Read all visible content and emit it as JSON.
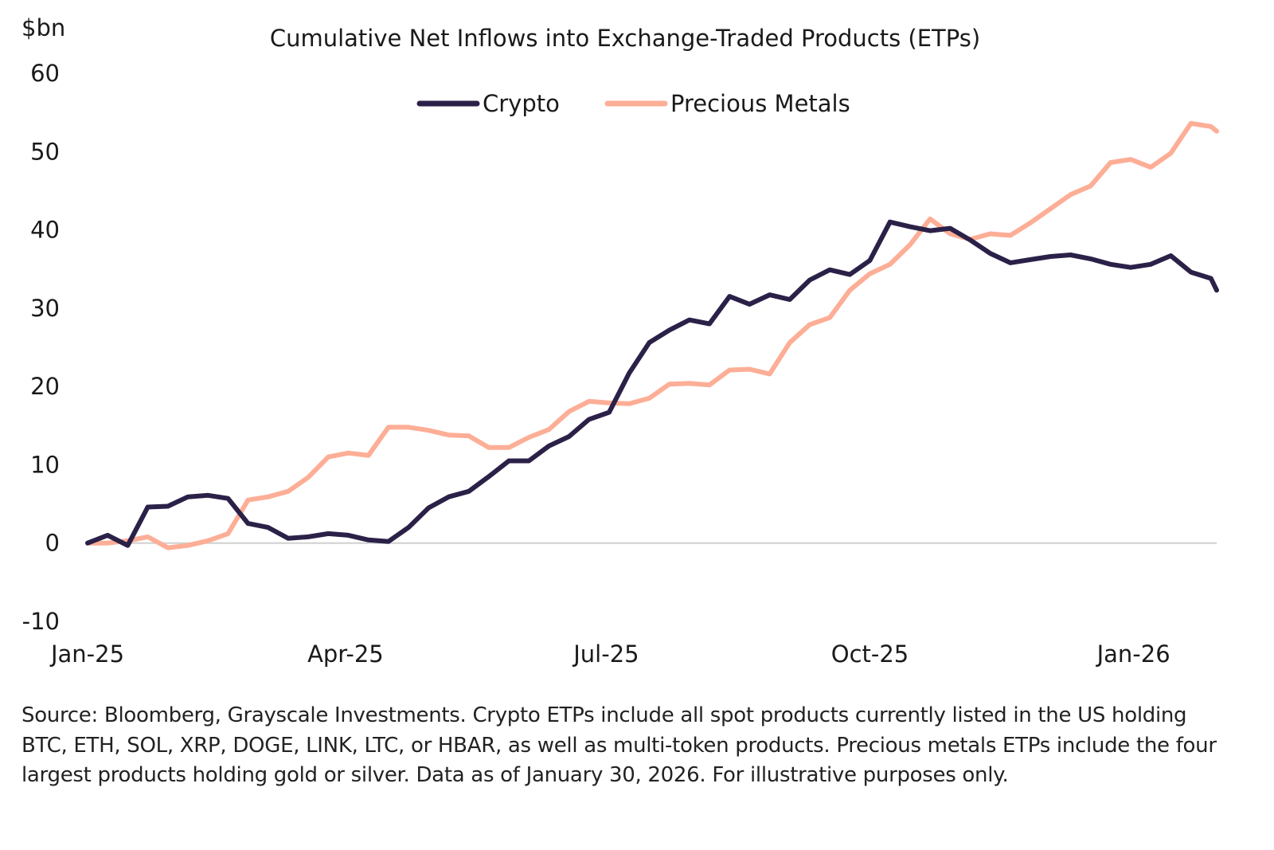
{
  "chart_data": {
    "type": "line",
    "title": "Cumulative Net Inflows into Exchange-Traded Products (ETPs)",
    "ylabel": "$bn",
    "xlabel": "",
    "ylim": [
      -10,
      60
    ],
    "yticks": [
      -10,
      0,
      10,
      20,
      30,
      40,
      50,
      60
    ],
    "ytick_labels": [
      "-10",
      "0",
      "10",
      "20",
      "30",
      "40",
      "50",
      "60"
    ],
    "xlim": [
      "2025-01-01",
      "2026-01-30"
    ],
    "xticks": [
      "2025-01-01",
      "2025-04-01",
      "2025-07-01",
      "2025-10-01",
      "2026-01-01"
    ],
    "xtick_labels": [
      "Jan-25",
      "Apr-25",
      "Jul-25",
      "Oct-25",
      "Jan-26"
    ],
    "grid": false,
    "zero_line": true,
    "legend_position": "top-center",
    "x": [
      "2025-01-01",
      "2025-01-08",
      "2025-01-15",
      "2025-01-22",
      "2025-01-29",
      "2025-02-05",
      "2025-02-12",
      "2025-02-19",
      "2025-02-26",
      "2025-03-05",
      "2025-03-12",
      "2025-03-19",
      "2025-03-26",
      "2025-04-02",
      "2025-04-09",
      "2025-04-16",
      "2025-04-23",
      "2025-04-30",
      "2025-05-07",
      "2025-05-14",
      "2025-05-21",
      "2025-05-28",
      "2025-06-04",
      "2025-06-11",
      "2025-06-18",
      "2025-06-25",
      "2025-07-02",
      "2025-07-09",
      "2025-07-16",
      "2025-07-23",
      "2025-07-30",
      "2025-08-06",
      "2025-08-13",
      "2025-08-20",
      "2025-08-27",
      "2025-09-03",
      "2025-09-10",
      "2025-09-17",
      "2025-09-24",
      "2025-10-01",
      "2025-10-08",
      "2025-10-15",
      "2025-10-22",
      "2025-10-29",
      "2025-11-05",
      "2025-11-12",
      "2025-11-19",
      "2025-11-26",
      "2025-12-03",
      "2025-12-10",
      "2025-12-17",
      "2025-12-24",
      "2025-12-31",
      "2026-01-07",
      "2026-01-14",
      "2026-01-21",
      "2026-01-28",
      "2026-01-30"
    ],
    "series": [
      {
        "name": "Crypto",
        "color": "#2b2148",
        "values": [
          0,
          1.0,
          -0.3,
          4.6,
          4.7,
          5.9,
          6.1,
          5.7,
          2.5,
          2.0,
          0.6,
          0.8,
          1.2,
          1.0,
          0.4,
          0.2,
          2.0,
          4.5,
          5.9,
          6.6,
          8.5,
          10.5,
          10.5,
          12.4,
          13.6,
          15.8,
          16.7,
          21.7,
          25.6,
          27.2,
          28.5,
          28.0,
          31.5,
          30.5,
          31.7,
          31.1,
          33.6,
          34.9,
          34.3,
          36.1,
          41.0,
          40.4,
          39.9,
          40.2,
          38.7,
          37.0,
          35.8,
          36.2,
          36.6,
          36.8,
          36.3,
          35.6,
          35.2,
          35.6,
          36.7,
          34.6,
          33.8,
          32.3
        ]
      },
      {
        "name": "Precious Metals",
        "color": "#fdae96",
        "values": [
          0,
          0,
          0.3,
          0.8,
          -0.6,
          -0.3,
          0.3,
          1.2,
          5.5,
          5.9,
          6.6,
          8.4,
          11.0,
          11.5,
          11.2,
          14.8,
          14.8,
          14.4,
          13.8,
          13.7,
          12.2,
          12.2,
          13.5,
          14.5,
          16.8,
          18.1,
          17.9,
          17.8,
          18.5,
          20.3,
          20.4,
          20.2,
          22.1,
          22.2,
          21.6,
          25.6,
          27.9,
          28.8,
          32.3,
          34.4,
          35.6,
          38.1,
          41.4,
          39.5,
          38.8,
          39.5,
          39.3,
          40.9,
          42.7,
          44.5,
          45.6,
          48.6,
          49.0,
          48.0,
          49.8,
          53.6,
          53.2,
          52.6
        ]
      }
    ]
  },
  "source_note": "Source: Bloomberg, Grayscale Investments. Crypto ETPs include all spot products currently listed in the US holding BTC, ETH, SOL, XRP, DOGE, LINK, LTC, or HBAR, as well as multi-token products. Precious metals ETPs include the four largest products holding gold or silver. Data as of January 30, 2026. For illustrative purposes only."
}
